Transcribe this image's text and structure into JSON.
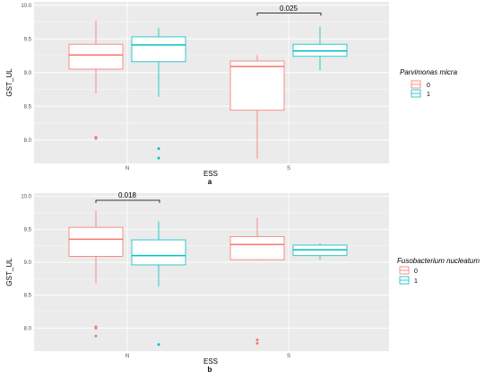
{
  "colors": {
    "group0": "#F8766D",
    "group1": "#00BFC4",
    "panel_bg": "#EBEBEB",
    "grid": "#FFFFFF"
  },
  "chart_data": [
    {
      "type": "boxplot",
      "panel_label": "a",
      "xlabel": "ESS",
      "ylabel": "GST_UL",
      "categories": [
        "N",
        "S"
      ],
      "ylim": [
        7.65,
        10.05
      ],
      "y_ticks": [
        8.0,
        8.5,
        9.0,
        9.5,
        10.0
      ],
      "y_tick_labels": [
        "8.0",
        "8.5",
        "9.0",
        "9.5",
        "10.0"
      ],
      "grid": true,
      "legend": {
        "title": "Parvimonas micra",
        "position": "right",
        "entries": [
          "0",
          "1"
        ]
      },
      "boxes": [
        {
          "category": "N",
          "group": "0",
          "min": 8.69,
          "q1": 9.05,
          "median": 9.26,
          "q3": 9.42,
          "max": 9.77,
          "outliers": [
            8.02,
            8.04
          ]
        },
        {
          "category": "N",
          "group": "1",
          "min": 8.64,
          "q1": 9.16,
          "median": 9.41,
          "q3": 9.53,
          "max": 9.66,
          "outliers": [
            7.87,
            7.73
          ]
        },
        {
          "category": "S",
          "group": "0",
          "min": 7.72,
          "q1": 8.44,
          "median": 9.09,
          "q3": 9.17,
          "max": 9.26,
          "outliers": []
        },
        {
          "category": "S",
          "group": "1",
          "min": 9.03,
          "q1": 9.24,
          "median": 9.32,
          "q3": 9.42,
          "max": 9.68,
          "outliers": []
        }
      ],
      "annotations": [
        {
          "text": "0.025",
          "category": "S"
        }
      ]
    },
    {
      "type": "boxplot",
      "panel_label": "b",
      "xlabel": "ESS",
      "ylabel": "GST_UL",
      "categories": [
        "N",
        "S"
      ],
      "ylim": [
        7.65,
        10.05
      ],
      "y_ticks": [
        8.0,
        8.5,
        9.0,
        9.5,
        10.0
      ],
      "y_tick_labels": [
        "8.0",
        "8.5",
        "9.0",
        "9.5",
        "10.0"
      ],
      "grid": true,
      "legend": {
        "title": "Fusobacterium nucleatum",
        "position": "right",
        "entries": [
          "0",
          "1"
        ]
      },
      "boxes": [
        {
          "category": "N",
          "group": "0",
          "min": 8.68,
          "q1": 9.09,
          "median": 9.35,
          "q3": 9.53,
          "max": 9.78,
          "outliers": [
            8.02,
            8.0,
            7.88
          ]
        },
        {
          "category": "N",
          "group": "1",
          "min": 8.63,
          "q1": 8.96,
          "median": 9.1,
          "q3": 9.34,
          "max": 9.62,
          "outliers": [
            7.75
          ]
        },
        {
          "category": "S",
          "group": "0",
          "min": 9.03,
          "q1": 9.04,
          "median": 9.27,
          "q3": 9.39,
          "max": 9.67,
          "outliers": [
            7.82,
            7.77
          ]
        },
        {
          "category": "S",
          "group": "1",
          "min": 9.04,
          "q1": 9.1,
          "median": 9.19,
          "q3": 9.26,
          "max": 9.29,
          "outliers": []
        }
      ],
      "annotations": [
        {
          "text": "0.018",
          "category": "N"
        }
      ]
    }
  ]
}
